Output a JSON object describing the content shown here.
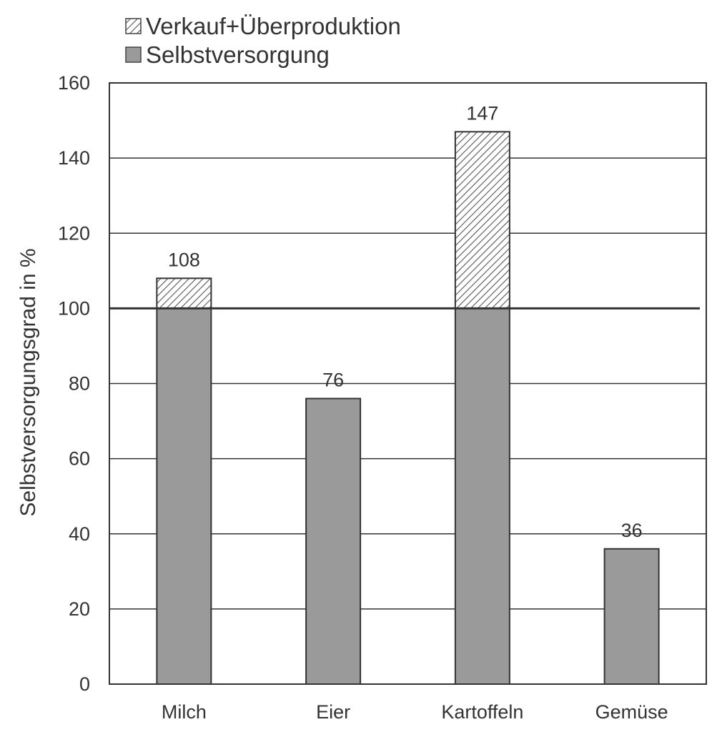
{
  "chart_data": {
    "type": "bar",
    "stacked": true,
    "categories": [
      "Milch",
      "Eier",
      "Kartoffeln",
      "Gemüse"
    ],
    "series": [
      {
        "name": "Selbstversorgung",
        "values": [
          100,
          76,
          100,
          36
        ],
        "color": "#9a9a9a",
        "pattern": "solid"
      },
      {
        "name": "Verkauf+Überproduktion",
        "values": [
          8,
          0,
          47,
          0
        ],
        "color": "#ffffff",
        "pattern": "hatched"
      }
    ],
    "totals": [
      "108",
      "76",
      "147",
      "36"
    ],
    "ylabel": "Selbstversorgungsgrad in %",
    "xlabel": "",
    "ylim": [
      0,
      160
    ],
    "yticks": [
      "0",
      "20",
      "40",
      "60",
      "80",
      "100",
      "120",
      "140",
      "160"
    ],
    "grid": true,
    "reference_line": 100,
    "legend": {
      "placement": "top-left",
      "order": [
        "Verkauf+Überproduktion",
        "Selbstversorgung"
      ]
    }
  }
}
